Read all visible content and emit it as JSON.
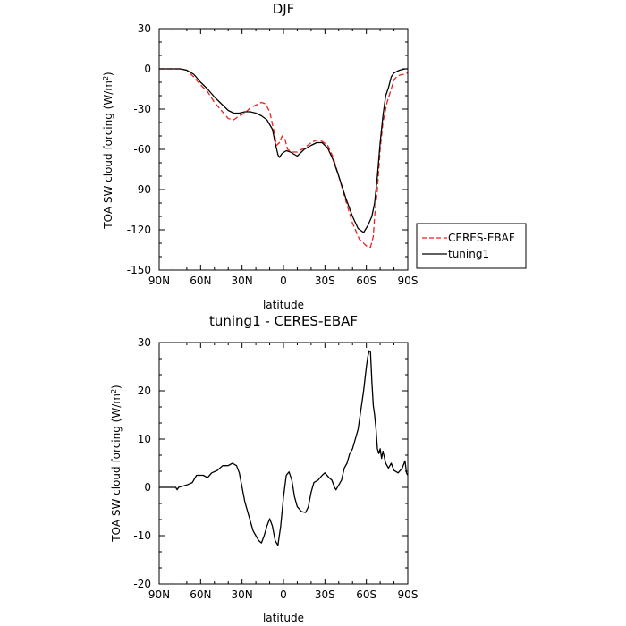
{
  "chart_data": [
    {
      "type": "line",
      "title": "DJF",
      "xlabel": "latitude",
      "ylabel": "TOA SW cloud forcing (W/m²)",
      "xlim": [
        90,
        -90
      ],
      "ylim": [
        -150,
        30
      ],
      "x_ticks": [
        90,
        60,
        30,
        0,
        -30,
        -60,
        -90
      ],
      "x_tick_labels": [
        "90N",
        "60N",
        "30N",
        "0",
        "30S",
        "60S",
        "90S"
      ],
      "y_ticks": [
        30,
        0,
        -30,
        -60,
        -90,
        -120,
        -150
      ],
      "y_tick_labels": [
        "30",
        "0",
        "-30",
        "-60",
        "-90",
        "-120",
        "-150"
      ],
      "legend_placement": "outside-right",
      "series": [
        {
          "name": "CERES-EBAF",
          "color": "#e8231f",
          "dash": "dashed",
          "points": [
            [
              90,
              0
            ],
            [
              75,
              0
            ],
            [
              70,
              -1
            ],
            [
              65,
              -6
            ],
            [
              60,
              -12
            ],
            [
              55,
              -17
            ],
            [
              50,
              -25
            ],
            [
              45,
              -31
            ],
            [
              40,
              -37
            ],
            [
              36,
              -38
            ],
            [
              32,
              -35
            ],
            [
              28,
              -33
            ],
            [
              24,
              -29
            ],
            [
              20,
              -27
            ],
            [
              16,
              -25
            ],
            [
              13,
              -26
            ],
            [
              10,
              -32
            ],
            [
              7,
              -46
            ],
            [
              5,
              -57
            ],
            [
              3,
              -55
            ],
            [
              1,
              -50
            ],
            [
              -1,
              -52
            ],
            [
              -3,
              -60
            ],
            [
              -6,
              -62
            ],
            [
              -10,
              -62
            ],
            [
              -15,
              -59
            ],
            [
              -20,
              -55
            ],
            [
              -24,
              -53
            ],
            [
              -28,
              -54
            ],
            [
              -32,
              -57
            ],
            [
              -36,
              -66
            ],
            [
              -40,
              -80
            ],
            [
              -45,
              -98
            ],
            [
              -50,
              -115
            ],
            [
              -55,
              -127
            ],
            [
              -60,
              -132
            ],
            [
              -63,
              -133
            ],
            [
              -65,
              -125
            ],
            [
              -66,
              -110
            ],
            [
              -68,
              -90
            ],
            [
              -70,
              -60
            ],
            [
              -72,
              -40
            ],
            [
              -75,
              -25
            ],
            [
              -78,
              -15
            ],
            [
              -80,
              -8
            ],
            [
              -83,
              -5
            ],
            [
              -87,
              -4
            ],
            [
              -90,
              -3
            ]
          ]
        },
        {
          "name": "tuning1",
          "color": "#000000",
          "dash": "solid",
          "points": [
            [
              90,
              0
            ],
            [
              75,
              0
            ],
            [
              70,
              -1
            ],
            [
              65,
              -4
            ],
            [
              60,
              -10
            ],
            [
              55,
              -15
            ],
            [
              50,
              -21
            ],
            [
              45,
              -26
            ],
            [
              40,
              -31
            ],
            [
              36,
              -33
            ],
            [
              32,
              -33
            ],
            [
              28,
              -32
            ],
            [
              24,
              -32
            ],
            [
              20,
              -33
            ],
            [
              16,
              -35
            ],
            [
              12,
              -38
            ],
            [
              8,
              -45
            ],
            [
              6,
              -55
            ],
            [
              4,
              -64
            ],
            [
              3,
              -66
            ],
            [
              1,
              -63
            ],
            [
              -2,
              -61
            ],
            [
              -5,
              -62
            ],
            [
              -10,
              -65
            ],
            [
              -15,
              -60
            ],
            [
              -20,
              -57
            ],
            [
              -24,
              -55
            ],
            [
              -28,
              -55
            ],
            [
              -32,
              -59
            ],
            [
              -36,
              -68
            ],
            [
              -40,
              -80
            ],
            [
              -45,
              -96
            ],
            [
              -50,
              -110
            ],
            [
              -54,
              -119
            ],
            [
              -58,
              -122
            ],
            [
              -61,
              -117
            ],
            [
              -64,
              -110
            ],
            [
              -66,
              -100
            ],
            [
              -68,
              -80
            ],
            [
              -70,
              -55
            ],
            [
              -72,
              -35
            ],
            [
              -74,
              -20
            ],
            [
              -76,
              -14
            ],
            [
              -78,
              -6
            ],
            [
              -80,
              -3
            ],
            [
              -84,
              -1
            ],
            [
              -88,
              0
            ],
            [
              -90,
              0
            ]
          ]
        }
      ]
    },
    {
      "type": "line",
      "title": "tuning1 - CERES-EBAF",
      "xlabel": "latitude",
      "ylabel": "TOA SW cloud forcing (W/m²)",
      "xlim": [
        90,
        -90
      ],
      "ylim": [
        -20,
        30
      ],
      "x_ticks": [
        90,
        60,
        30,
        0,
        -30,
        -60,
        -90
      ],
      "x_tick_labels": [
        "90N",
        "60N",
        "30N",
        "0",
        "30S",
        "60S",
        "90S"
      ],
      "y_ticks": [
        30,
        20,
        10,
        0,
        -10,
        -20
      ],
      "y_tick_labels": [
        "30",
        "20",
        "10",
        "0",
        "-10",
        "-20"
      ],
      "series": [
        {
          "color": "#000000",
          "dash": "solid",
          "points": [
            [
              90,
              0
            ],
            [
              78,
              0
            ],
            [
              77,
              -0.5
            ],
            [
              76,
              0
            ],
            [
              70,
              0.5
            ],
            [
              66,
              1
            ],
            [
              63,
              2.5
            ],
            [
              58,
              2.5
            ],
            [
              55,
              2
            ],
            [
              52,
              3
            ],
            [
              48,
              3.5
            ],
            [
              44,
              4.5
            ],
            [
              40,
              4.5
            ],
            [
              37,
              5
            ],
            [
              34,
              4.5
            ],
            [
              32,
              3
            ],
            [
              30,
              0
            ],
            [
              28,
              -3
            ],
            [
              25,
              -6
            ],
            [
              22,
              -9
            ],
            [
              20,
              -10
            ],
            [
              18,
              -11
            ],
            [
              16,
              -11.5
            ],
            [
              14,
              -10
            ],
            [
              12,
              -8
            ],
            [
              10,
              -6.5
            ],
            [
              8,
              -8
            ],
            [
              6,
              -11
            ],
            [
              4,
              -12
            ],
            [
              2,
              -8
            ],
            [
              0,
              -2
            ],
            [
              -2,
              2.5
            ],
            [
              -4,
              3.2
            ],
            [
              -6,
              1.5
            ],
            [
              -8,
              -2
            ],
            [
              -10,
              -4
            ],
            [
              -13,
              -5
            ],
            [
              -16,
              -5.2
            ],
            [
              -18,
              -4
            ],
            [
              -20,
              -1
            ],
            [
              -22,
              1
            ],
            [
              -25,
              1.5
            ],
            [
              -28,
              2.5
            ],
            [
              -30,
              3
            ],
            [
              -33,
              2
            ],
            [
              -35,
              1.5
            ],
            [
              -37,
              0
            ],
            [
              -38,
              -0.5
            ],
            [
              -40,
              0.5
            ],
            [
              -42,
              1.5
            ],
            [
              -44,
              4
            ],
            [
              -46,
              5
            ],
            [
              -48,
              7
            ],
            [
              -50,
              8
            ],
            [
              -52,
              10
            ],
            [
              -54,
              12
            ],
            [
              -56,
              16
            ],
            [
              -58,
              20
            ],
            [
              -60,
              25
            ],
            [
              -61,
              27
            ],
            [
              -62,
              28.3
            ],
            [
              -63,
              28
            ],
            [
              -64,
              22
            ],
            [
              -65,
              17
            ],
            [
              -66,
              15
            ],
            [
              -67,
              12
            ],
            [
              -68,
              8
            ],
            [
              -69,
              7
            ],
            [
              -70,
              8
            ],
            [
              -71,
              6
            ],
            [
              -72,
              7.5
            ],
            [
              -74,
              5
            ],
            [
              -76,
              4
            ],
            [
              -78,
              5
            ],
            [
              -80,
              3.5
            ],
            [
              -83,
              3
            ],
            [
              -86,
              4
            ],
            [
              -88,
              5.5
            ],
            [
              -89,
              3
            ],
            [
              -90,
              2.5
            ]
          ]
        }
      ]
    }
  ]
}
